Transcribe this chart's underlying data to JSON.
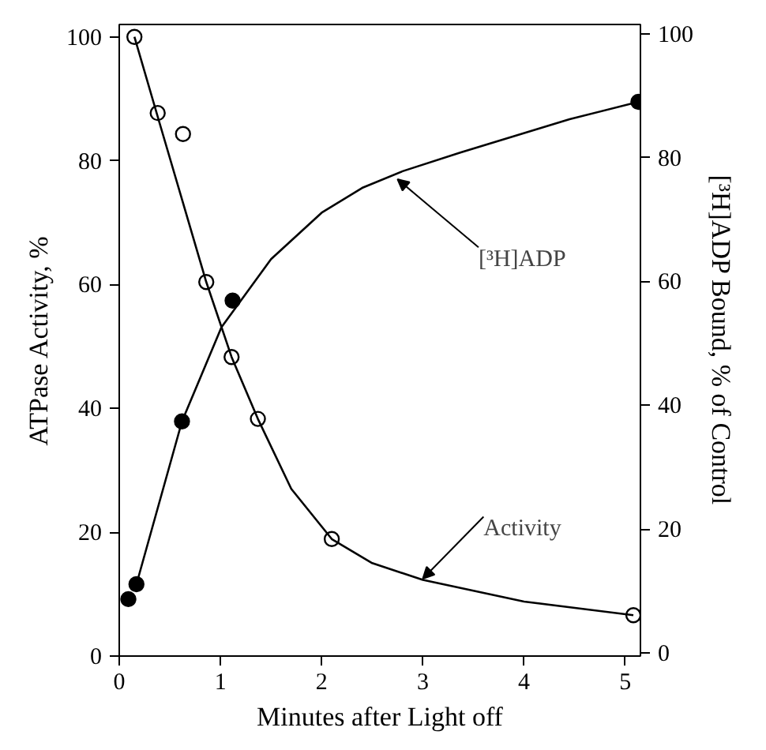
{
  "chart_data": {
    "type": "scatter",
    "xlabel": "Minutes after Light off",
    "ylabel": "ATPase Activity, %",
    "y2label": "[³H]ADP Bound, % of Control",
    "xlim": [
      0,
      5.15
    ],
    "xticks": [
      0,
      1,
      2,
      3,
      4,
      5
    ],
    "ylim": [
      0,
      102
    ],
    "yticks": [
      0,
      20,
      40,
      60,
      80,
      100
    ],
    "y2lim": [
      -0.5,
      101.5
    ],
    "y2ticks": [
      0,
      20,
      40,
      60,
      80,
      100
    ],
    "grid": false,
    "series": [
      {
        "marker": "circle",
        "color": "#ffffff",
        "x": [
          0.15,
          0.38,
          0.63,
          0.86,
          1.11,
          1.37,
          2.1,
          5.08
        ],
        "values": [
          100,
          87.7,
          84.3,
          60.4,
          48.3,
          38.3,
          18.9,
          6.6
        ]
      },
      {
        "marker": "circle",
        "color": "#000000",
        "axis": "y2",
        "x": [
          0.09,
          0.17,
          0.62,
          1.12,
          5.13
        ],
        "values": [
          8.7,
          11.1,
          37.4,
          56.9,
          89.0
        ]
      },
      {
        "type": "line",
        "marker": "none",
        "color": "#000000",
        "line_style": "solid",
        "x": [
          0.15,
          0.4,
          0.86,
          1.11,
          1.37,
          1.7,
          2.1,
          2.5,
          3.0,
          4.0,
          5.08
        ],
        "values": [
          100,
          86,
          60.4,
          48.3,
          38.3,
          27,
          18.9,
          15,
          12.3,
          8.8,
          6.6
        ]
      },
      {
        "type": "line",
        "marker": "none",
        "color": "#000000",
        "line_style": "solid",
        "axis": "y2",
        "x": [
          0.17,
          0.62,
          1.01,
          1.5,
          2.0,
          2.4,
          2.8,
          3.37,
          4.45,
          5.13
        ],
        "values": [
          11.1,
          37.4,
          52.6,
          63.6,
          71.1,
          75.1,
          77.8,
          80.8,
          86.2,
          89.0
        ]
      }
    ],
    "annotations": [
      {
        "text": "[³H]ADP",
        "x": 2.75,
        "y": 77
      },
      {
        "text": "Activity",
        "x": 3.0,
        "y": 12.5
      }
    ]
  }
}
